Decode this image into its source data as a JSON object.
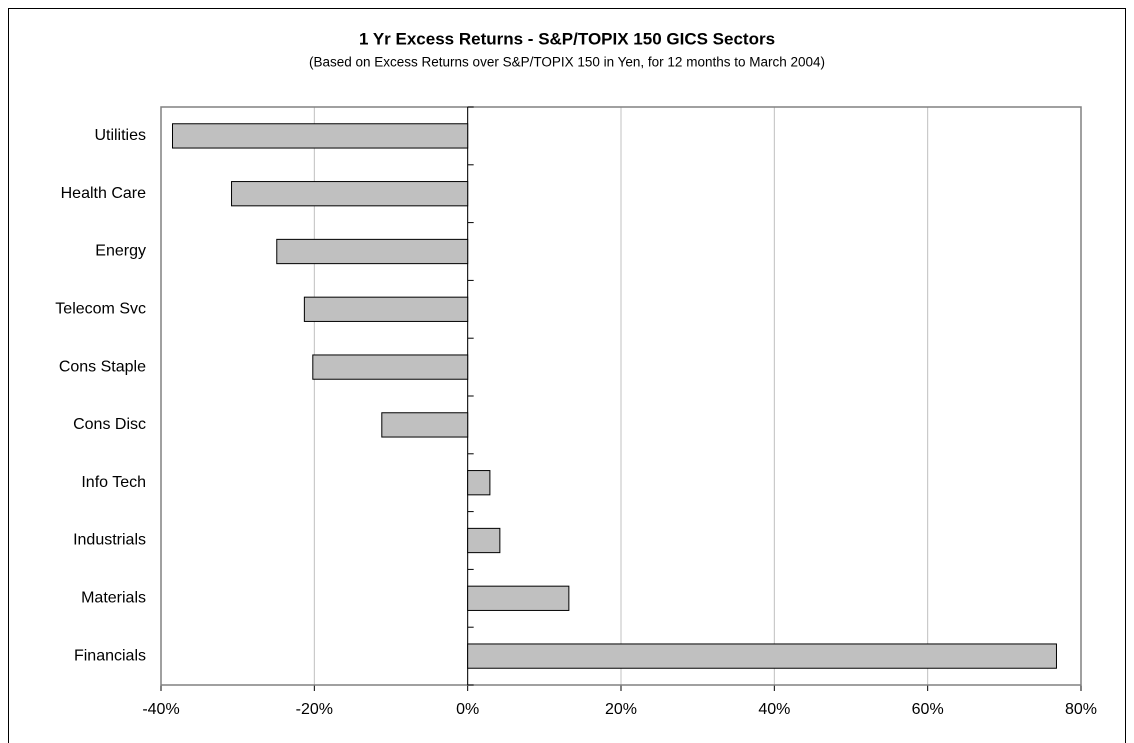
{
  "chart_data": {
    "type": "hbar",
    "title": "1 Yr Excess Returns - S&P/TOPIX 150 GICS Sectors",
    "subtitle": "(Based on Excess Returns over S&P/TOPIX 150 in Yen, for 12 months to March 2004)",
    "categories": [
      "Utilities",
      "Health Care",
      "Energy",
      "Telecom Svc",
      "Cons Staple",
      "Cons Disc",
      "Info Tech",
      "Industrials",
      "Materials",
      "Financials"
    ],
    "values": [
      -38.5,
      -30.8,
      -24.9,
      -21.3,
      -20.2,
      -11.2,
      2.9,
      4.2,
      13.2,
      76.8
    ],
    "color": "#c0c0c0",
    "xlim": [
      -40,
      80
    ],
    "xticks": [
      {
        "value": -40,
        "label": "-40%"
      },
      {
        "value": -20,
        "label": "-20%"
      },
      {
        "value": 0,
        "label": "0%"
      },
      {
        "value": 20,
        "label": "20%"
      },
      {
        "value": 40,
        "label": "40%"
      },
      {
        "value": 60,
        "label": "60%"
      },
      {
        "value": 80,
        "label": "80%"
      }
    ],
    "grid": true
  }
}
